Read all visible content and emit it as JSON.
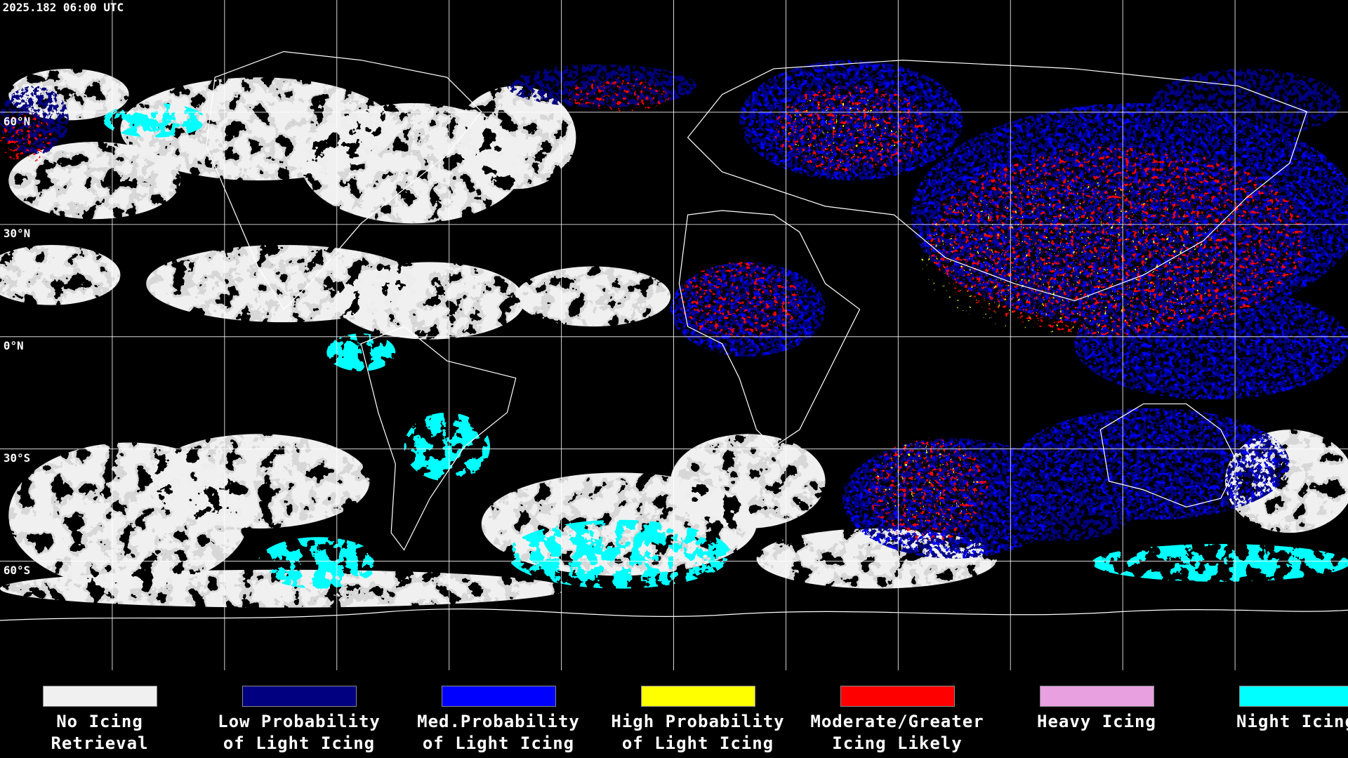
{
  "header": {
    "timestamp": "2025.182 06:00 UTC"
  },
  "map": {
    "latitude_labels": [
      "60°N",
      "30°N",
      "0°N",
      "30°S",
      "60°S"
    ]
  },
  "legend": [
    {
      "color": "#f0f0f0",
      "label": [
        "No Icing",
        "Retrieval"
      ]
    },
    {
      "color": "#000080",
      "label": [
        "Low Probability",
        "of Light Icing"
      ]
    },
    {
      "color": "#0000ff",
      "label": [
        "Med.Probability",
        "of Light Icing"
      ]
    },
    {
      "color": "#ffff00",
      "label": [
        "High Probability",
        "of Light Icing"
      ]
    },
    {
      "color": "#ff0000",
      "label": [
        "Moderate/Greater",
        "Icing Likely"
      ]
    },
    {
      "color": "#e8a0e0",
      "label": [
        "Heavy Icing",
        ""
      ]
    },
    {
      "color": "#00ffff",
      "label": [
        "Night Icing",
        ""
      ]
    }
  ]
}
